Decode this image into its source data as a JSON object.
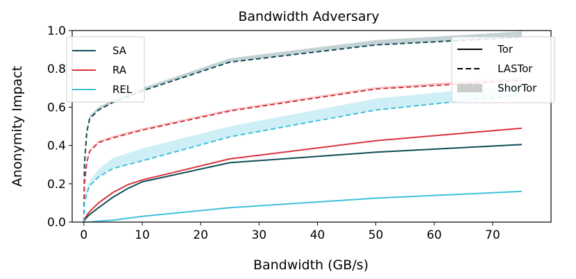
{
  "chart_data": {
    "type": "line",
    "title": "Bandwidth Adversary",
    "xlabel": "Bandwidth (GB/s)",
    "ylabel": "Anonymity Impact",
    "xlim": [
      -2,
      80
    ],
    "ylim": [
      0.0,
      1.0
    ],
    "xticks": [
      0,
      10,
      20,
      30,
      40,
      50,
      60,
      70
    ],
    "yticks": [
      0.0,
      0.2,
      0.4,
      0.6,
      0.8,
      1.0
    ],
    "xtick_labels": [
      "0",
      "10",
      "20",
      "30",
      "40",
      "50",
      "60",
      "70"
    ],
    "ytick_labels": [
      "0.0",
      "0.2",
      "0.4",
      "0.6",
      "0.8",
      "1.0"
    ],
    "grid": false,
    "x": [
      0,
      0.1,
      0.5,
      1,
      2.5,
      5,
      7.5,
      10,
      25,
      50,
      75
    ],
    "series": [
      {
        "name": "SA",
        "system": "Tor",
        "color": "#0e4a55",
        "style": "solid",
        "values": [
          0.0,
          0.01,
          0.025,
          0.04,
          0.075,
          0.13,
          0.175,
          0.21,
          0.31,
          0.365,
          0.405
        ]
      },
      {
        "name": "RA",
        "system": "Tor",
        "color": "#d8323c",
        "style": "solid",
        "values": [
          0.0,
          0.015,
          0.035,
          0.055,
          0.1,
          0.155,
          0.195,
          0.22,
          0.33,
          0.425,
          0.49
        ]
      },
      {
        "name": "REL",
        "system": "Tor",
        "color": "#3ec0da",
        "style": "solid",
        "values": [
          0.0,
          0.0,
          0.0,
          0.0,
          0.005,
          0.01,
          0.02,
          0.03,
          0.075,
          0.125,
          0.16
        ]
      },
      {
        "name": "SA",
        "system": "LASTor",
        "color": "#0e4a55",
        "style": "dashed",
        "values": [
          0.0,
          0.3,
          0.47,
          0.54,
          0.585,
          0.625,
          0.655,
          0.685,
          0.835,
          0.925,
          0.965
        ]
      },
      {
        "name": "RA",
        "system": "LASTor",
        "color": "#d8323c",
        "style": "dashed",
        "values": [
          0.0,
          0.2,
          0.31,
          0.37,
          0.415,
          0.44,
          0.46,
          0.48,
          0.58,
          0.695,
          0.74
        ]
      },
      {
        "name": "REL",
        "system": "LASTor",
        "color": "#3ec0da",
        "style": "dashed",
        "values": [
          0.0,
          0.1,
          0.15,
          0.19,
          0.235,
          0.28,
          0.3,
          0.32,
          0.445,
          0.585,
          0.665
        ]
      }
    ],
    "bands": [
      {
        "name": "SA",
        "system": "ShorTor",
        "color": "#0e4a55",
        "lower": [
          0.0,
          0.3,
          0.47,
          0.54,
          0.585,
          0.625,
          0.655,
          0.685,
          0.835,
          0.925,
          0.965
        ],
        "upper": [
          0.0,
          0.32,
          0.48,
          0.555,
          0.6,
          0.64,
          0.67,
          0.7,
          0.855,
          0.95,
          0.995
        ]
      },
      {
        "name": "RA",
        "system": "ShorTor",
        "color": "#d8323c",
        "lower": [
          0.0,
          0.2,
          0.31,
          0.37,
          0.415,
          0.44,
          0.46,
          0.48,
          0.58,
          0.695,
          0.74
        ],
        "upper": [
          0.0,
          0.215,
          0.32,
          0.38,
          0.425,
          0.45,
          0.47,
          0.49,
          0.59,
          0.705,
          0.755
        ]
      },
      {
        "name": "REL",
        "system": "ShorTor",
        "color": "#3ec0da",
        "lower": [
          0.0,
          0.1,
          0.15,
          0.19,
          0.235,
          0.28,
          0.3,
          0.32,
          0.445,
          0.585,
          0.665
        ],
        "upper": [
          0.0,
          0.12,
          0.18,
          0.215,
          0.275,
          0.335,
          0.36,
          0.385,
          0.5,
          0.645,
          0.72
        ]
      }
    ],
    "legend_adversary": {
      "placement": "top-left",
      "entries": [
        {
          "label": "SA",
          "color": "#0e4a55"
        },
        {
          "label": "RA",
          "color": "#d8323c"
        },
        {
          "label": "REL",
          "color": "#3ec0da"
        }
      ]
    },
    "legend_system": {
      "placement": "top-right",
      "entries": [
        {
          "label": "Tor",
          "style": "solid"
        },
        {
          "label": "LASTor",
          "style": "dashed"
        },
        {
          "label": "ShorTor",
          "style": "band"
        }
      ]
    }
  }
}
